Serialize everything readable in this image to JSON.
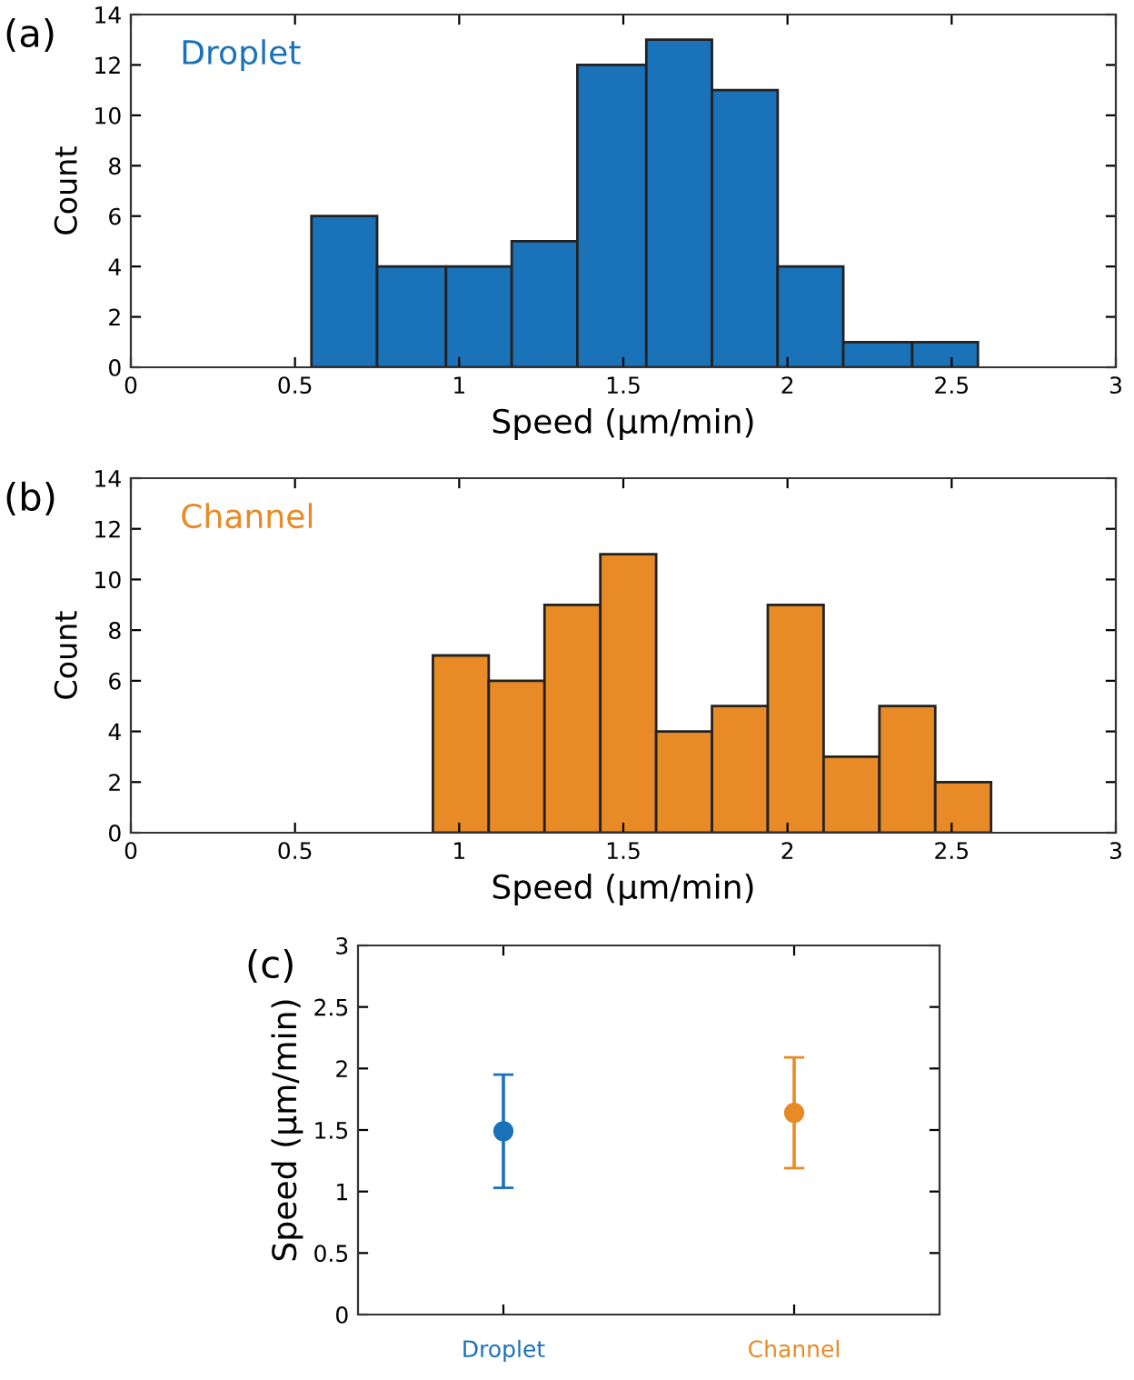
{
  "chart_data": [
    {
      "type": "histogram",
      "title": "(a)",
      "xlabel": "Speed (µm/min)",
      "ylabel": "Count",
      "annotations": [
        "Droplet"
      ],
      "color": "#1a72b8",
      "bins": [
        0.55,
        0.75,
        0.96,
        1.16,
        1.36,
        1.57,
        1.77,
        1.97,
        2.17,
        2.38,
        2.58
      ],
      "values": [
        6,
        4,
        4,
        5,
        12,
        13,
        11,
        4,
        1,
        1
      ],
      "xlim": [
        0,
        3
      ],
      "xticks": [
        0,
        0.5,
        1,
        1.5,
        2,
        2.5,
        3
      ],
      "ylim": [
        0,
        14
      ],
      "yticks": [
        0,
        2,
        4,
        6,
        8,
        10,
        12,
        14
      ],
      "grid": false
    },
    {
      "type": "histogram",
      "title": "(b)",
      "xlabel": "Speed (µm/min)",
      "ylabel": "Count",
      "annotations": [
        "Channel"
      ],
      "color": "#e88a25",
      "bins": [
        0.92,
        1.09,
        1.26,
        1.43,
        1.6,
        1.77,
        1.94,
        2.11,
        2.28,
        2.45,
        2.62
      ],
      "values": [
        7,
        6,
        9,
        11,
        4,
        5,
        9,
        3,
        5,
        2
      ],
      "xlim": [
        0,
        3
      ],
      "xticks": [
        0,
        0.5,
        1,
        1.5,
        2,
        2.5,
        3
      ],
      "ylim": [
        0,
        14
      ],
      "yticks": [
        0,
        2,
        4,
        6,
        8,
        10,
        12,
        14
      ],
      "grid": false
    },
    {
      "type": "scatter",
      "title": "(c)",
      "ylabel": "Speed (µm/min)",
      "categories": [
        "Droplet",
        "Channel"
      ],
      "series": [
        {
          "colors": [
            "#1a72b8",
            "#e88a25"
          ],
          "values": [
            1.49,
            1.64
          ],
          "errors": [
            0.46,
            0.45
          ]
        }
      ],
      "marker": "circle",
      "ylim": [
        0,
        3
      ],
      "yticks": [
        0,
        0.5,
        1,
        1.5,
        2,
        2.5,
        3
      ],
      "grid": false
    }
  ]
}
